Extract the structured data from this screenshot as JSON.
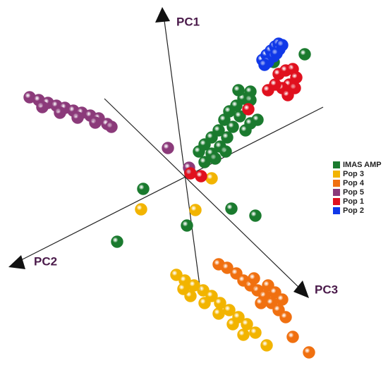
{
  "chart_data": {
    "type": "scatter3d",
    "axis_labels": [
      "PC1",
      "PC2",
      "PC3"
    ],
    "xlim": [
      -263,
      287
    ],
    "ylim": [
      -273,
      252
    ],
    "series": [
      {
        "name": "IMAS AMP",
        "color": "#1a7a2e",
        "x": [
          92,
          82,
          75,
          72,
          62,
          77,
          55,
          67,
          47,
          59,
          37,
          49,
          27,
          37,
          19,
          27,
          57,
          42,
          85,
          92,
          102,
          169,
          125,
          -60,
          65,
          99,
          2,
          -97,
          92
        ],
        "y": [
          122,
          112,
          124,
          102,
          94,
          87,
          82,
          72,
          67,
          57,
          57,
          44,
          47,
          34,
          37,
          22,
          37,
          27,
          67,
          77,
          82,
          175,
          164,
          -16,
          -44,
          -54,
          -68,
          -91,
          110
        ]
      },
      {
        "name": "Pop 3",
        "color": "#f2b400",
        "x": [
          -13,
          -1,
          12,
          25,
          37,
          49,
          62,
          75,
          87,
          99,
          115,
          7,
          27,
          47,
          67,
          -3,
          82,
          -63,
          14,
          37
        ],
        "y": [
          -138,
          -146,
          -153,
          -160,
          -168,
          -178,
          -188,
          -198,
          -208,
          -220,
          -238,
          -168,
          -178,
          -193,
          -208,
          -158,
          -223,
          -45,
          -46,
          -1
        ]
      },
      {
        "name": "Pop 4",
        "color": "#f07010",
        "x": [
          47,
          59,
          72,
          82,
          92,
          102,
          112,
          122,
          132,
          142,
          97,
          117,
          127,
          107,
          137,
          152,
          175
        ],
        "y": [
          -123,
          -128,
          -136,
          -146,
          -153,
          -160,
          -168,
          -178,
          -188,
          -198,
          -143,
          -153,
          -163,
          -178,
          -173,
          -226,
          -248
        ]
      },
      {
        "name": "Pop 5",
        "color": "#8b3a7a",
        "x": [
          -221,
          -208,
          -195,
          -183,
          -171,
          -159,
          -147,
          -135,
          -123,
          -111,
          -105,
          -203,
          -178,
          -153,
          -128,
          -25,
          5
        ],
        "y": [
          114,
          110,
          106,
          102,
          99,
          95,
          92,
          88,
          84,
          76,
          72,
          100,
          92,
          85,
          78,
          42,
          14
        ]
      },
      {
        "name": "Pop 1",
        "color": "#e0101e",
        "x": [
          132,
          142,
          152,
          157,
          147,
          137,
          127,
          117,
          155,
          145,
          89,
          22,
          7
        ],
        "y": [
          147,
          152,
          154,
          142,
          132,
          127,
          132,
          124,
          127,
          117,
          97,
          2,
          6
        ]
      },
      {
        "name": "Pop 2",
        "color": "#1038e8",
        "x": [
          109,
          115,
          121,
          127,
          132,
          117,
          125,
          133,
          112,
          129,
          137
        ],
        "y": [
          167,
          174,
          180,
          186,
          190,
          164,
          172,
          182,
          160,
          176,
          188
        ]
      }
    ]
  }
}
